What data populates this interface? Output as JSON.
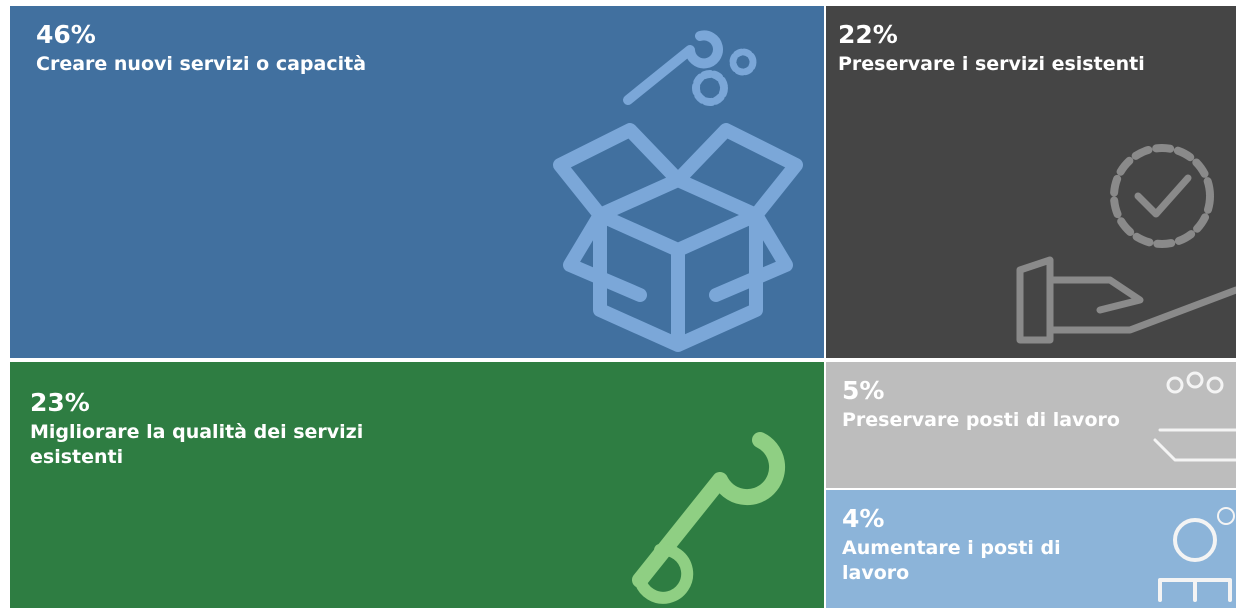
{
  "chart_data": {
    "type": "treemap",
    "categories": [
      "Creare nuovi servizi o capacità",
      "Preservare i servizi esistenti",
      "Migliorare la qualità dei servizi esistenti",
      "Preservare posti di lavoro",
      "Aumentare i posti di lavoro"
    ],
    "values": [
      46,
      22,
      23,
      5,
      4
    ],
    "value_labels": [
      "46%",
      "22%",
      "23%",
      "5%",
      "4%"
    ],
    "colors": [
      "#41709f",
      "#454545",
      "#2e7d42",
      "#bdbdbd",
      "#8cb4d9"
    ]
  }
}
